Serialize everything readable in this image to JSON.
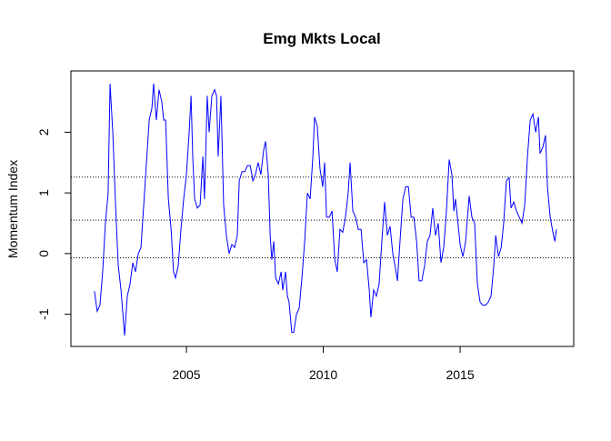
{
  "chart_data": {
    "type": "line",
    "title": "Emg Mkts Local",
    "y_label": "Momentum Index",
    "x": [
      2001.64,
      2001.74,
      2001.84,
      2001.94,
      2002.04,
      2002.14,
      2002.21,
      2002.31,
      2002.41,
      2002.51,
      2002.61,
      2002.74,
      2002.84,
      2002.94,
      2003.04,
      2003.14,
      2003.24,
      2003.34,
      2003.44,
      2003.54,
      2003.64,
      2003.74,
      2003.8,
      2003.9,
      2004.0,
      2004.1,
      2004.17,
      2004.24,
      2004.34,
      2004.44,
      2004.53,
      2004.6,
      2004.7,
      2004.8,
      2004.9,
      2005.0,
      2005.1,
      2005.17,
      2005.23,
      2005.3,
      2005.4,
      2005.5,
      2005.6,
      2005.66,
      2005.76,
      2005.83,
      2005.93,
      2006.03,
      2006.1,
      2006.16,
      2006.26,
      2006.36,
      2006.46,
      2006.56,
      2006.66,
      2006.76,
      2006.86,
      2006.93,
      2007.03,
      2007.13,
      2007.23,
      2007.33,
      2007.43,
      2007.52,
      2007.62,
      2007.72,
      2007.82,
      2007.89,
      2007.99,
      2008.06,
      2008.12,
      2008.19,
      2008.26,
      2008.36,
      2008.46,
      2008.52,
      2008.62,
      2008.69,
      2008.75,
      2008.85,
      2008.92,
      2009.02,
      2009.12,
      2009.22,
      2009.32,
      2009.42,
      2009.52,
      2009.62,
      2009.68,
      2009.78,
      2009.88,
      2009.98,
      2010.05,
      2010.12,
      2010.22,
      2010.32,
      2010.42,
      2010.51,
      2010.61,
      2010.71,
      2010.81,
      2010.91,
      2010.98,
      2011.08,
      2011.18,
      2011.28,
      2011.38,
      2011.48,
      2011.58,
      2011.68,
      2011.74,
      2011.84,
      2011.94,
      2012.04,
      2012.14,
      2012.24,
      2012.34,
      2012.44,
      2012.54,
      2012.64,
      2012.71,
      2012.81,
      2012.91,
      2013.01,
      2013.11,
      2013.21,
      2013.31,
      2013.41,
      2013.5,
      2013.6,
      2013.7,
      2013.8,
      2013.9,
      2014.0,
      2014.1,
      2014.2,
      2014.3,
      2014.4,
      2014.5,
      2014.6,
      2014.7,
      2014.77,
      2014.83,
      2014.9,
      2015.0,
      2015.1,
      2015.2,
      2015.33,
      2015.43,
      2015.53,
      2015.63,
      2015.73,
      2015.83,
      2015.93,
      2016.03,
      2016.13,
      2016.23,
      2016.3,
      2016.4,
      2016.5,
      2016.59,
      2016.69,
      2016.79,
      2016.86,
      2016.96,
      2017.06,
      2017.16,
      2017.26,
      2017.36,
      2017.46,
      2017.56,
      2017.66,
      2017.76,
      2017.86,
      2017.92,
      2018.02,
      2018.12,
      2018.19,
      2018.29,
      2018.39,
      2018.46,
      2018.52
    ],
    "values": [
      -0.62,
      -0.95,
      -0.85,
      -0.3,
      0.5,
      1.0,
      2.8,
      2.0,
      0.8,
      -0.2,
      -0.6,
      -1.35,
      -0.7,
      -0.5,
      -0.15,
      -0.3,
      0.0,
      0.1,
      0.8,
      1.5,
      2.2,
      2.4,
      2.8,
      2.2,
      2.7,
      2.5,
      2.2,
      2.2,
      0.9,
      0.4,
      -0.3,
      -0.4,
      -0.2,
      0.4,
      0.9,
      1.3,
      2.0,
      2.6,
      1.6,
      0.9,
      0.75,
      0.8,
      1.6,
      0.9,
      2.6,
      2.0,
      2.6,
      2.7,
      2.6,
      1.6,
      2.6,
      0.8,
      0.3,
      0.0,
      0.15,
      0.1,
      0.3,
      1.2,
      1.35,
      1.35,
      1.45,
      1.45,
      1.2,
      1.3,
      1.5,
      1.3,
      1.7,
      1.85,
      1.3,
      0.3,
      -0.1,
      0.2,
      -0.4,
      -0.5,
      -0.3,
      -0.6,
      -0.3,
      -0.7,
      -0.8,
      -1.3,
      -1.3,
      -1.0,
      -0.9,
      -0.4,
      0.2,
      1.0,
      0.9,
      1.6,
      2.25,
      2.1,
      1.4,
      1.1,
      1.5,
      0.6,
      0.6,
      0.7,
      -0.1,
      -0.3,
      0.4,
      0.35,
      0.6,
      1.0,
      1.5,
      0.7,
      0.6,
      0.4,
      0.4,
      -0.15,
      -0.1,
      -0.6,
      -1.05,
      -0.6,
      -0.7,
      -0.5,
      0.2,
      0.85,
      0.3,
      0.45,
      0.0,
      -0.25,
      -0.45,
      0.25,
      0.9,
      1.1,
      1.1,
      0.6,
      0.6,
      0.2,
      -0.45,
      -0.45,
      -0.2,
      0.2,
      0.3,
      0.75,
      0.3,
      0.5,
      -0.15,
      0.1,
      0.7,
      1.55,
      1.3,
      0.7,
      0.9,
      0.6,
      0.15,
      -0.05,
      0.2,
      0.95,
      0.6,
      0.5,
      -0.5,
      -0.8,
      -0.85,
      -0.85,
      -0.8,
      -0.7,
      -0.2,
      0.3,
      -0.05,
      0.1,
      0.5,
      1.2,
      1.25,
      0.75,
      0.85,
      0.7,
      0.6,
      0.5,
      0.8,
      1.6,
      2.2,
      2.3,
      2.0,
      2.25,
      1.65,
      1.75,
      1.95,
      1.1,
      0.6,
      0.35,
      0.2,
      0.4
    ],
    "color": "#0000ff",
    "hlines": [
      1.26,
      0.55,
      -0.07
    ],
    "xlim": [
      2000.78,
      2019.15
    ],
    "ylim": [
      -1.53,
      3.01
    ],
    "xticks": [
      2005,
      2010,
      2015
    ],
    "yticks": [
      -1,
      0,
      1,
      2
    ]
  }
}
